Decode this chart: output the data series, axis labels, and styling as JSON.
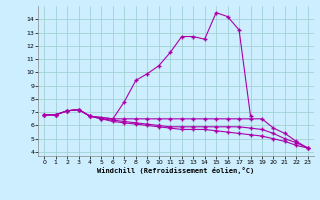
{
  "xlabel": "Windchill (Refroidissement éolien,°C)",
  "bg_color": "#cceeff",
  "grid_color": "#99cccc",
  "line_color": "#aa00aa",
  "xlim": [
    -0.5,
    23.5
  ],
  "ylim": [
    3.7,
    15.0
  ],
  "xticks": [
    0,
    1,
    2,
    3,
    4,
    5,
    6,
    7,
    8,
    9,
    10,
    11,
    12,
    13,
    14,
    15,
    16,
    17,
    18,
    19,
    20,
    21,
    22,
    23
  ],
  "yticks": [
    4,
    5,
    6,
    7,
    8,
    9,
    10,
    11,
    12,
    13,
    14
  ],
  "line1_x": [
    0,
    1,
    2,
    3,
    4,
    5,
    6,
    7,
    8,
    9,
    10,
    11,
    12,
    13,
    14,
    15,
    16,
    17,
    18
  ],
  "line1_y": [
    6.8,
    6.8,
    7.1,
    7.2,
    6.7,
    6.6,
    6.5,
    7.8,
    9.4,
    9.9,
    10.5,
    11.5,
    12.7,
    12.7,
    12.5,
    14.5,
    14.2,
    13.2,
    6.7
  ],
  "line2_x": [
    0,
    1,
    2,
    3,
    4,
    5,
    6,
    7,
    8,
    9,
    10,
    11,
    12,
    13,
    14,
    15,
    16,
    17,
    18,
    19,
    20,
    21,
    22,
    23
  ],
  "line2_y": [
    6.8,
    6.8,
    7.1,
    7.2,
    6.7,
    6.6,
    6.5,
    6.5,
    6.5,
    6.5,
    6.5,
    6.5,
    6.5,
    6.5,
    6.5,
    6.5,
    6.5,
    6.5,
    6.5,
    6.5,
    5.8,
    5.4,
    4.8,
    4.3
  ],
  "line3_x": [
    0,
    1,
    2,
    3,
    4,
    5,
    6,
    7,
    8,
    9,
    10,
    11,
    12,
    13,
    14,
    15,
    16,
    17,
    18,
    19,
    20,
    21,
    22,
    23
  ],
  "line3_y": [
    6.8,
    6.8,
    7.1,
    7.2,
    6.7,
    6.5,
    6.4,
    6.3,
    6.2,
    6.1,
    6.0,
    5.9,
    5.9,
    5.9,
    5.9,
    5.9,
    5.9,
    5.9,
    5.8,
    5.7,
    5.4,
    5.0,
    4.7,
    4.3
  ],
  "line4_x": [
    0,
    1,
    2,
    3,
    4,
    5,
    6,
    7,
    8,
    9,
    10,
    11,
    12,
    13,
    14,
    15,
    16,
    17,
    18,
    19,
    20,
    21,
    22,
    23
  ],
  "line4_y": [
    6.8,
    6.8,
    7.1,
    7.2,
    6.7,
    6.5,
    6.3,
    6.2,
    6.1,
    6.0,
    5.9,
    5.8,
    5.7,
    5.7,
    5.7,
    5.6,
    5.5,
    5.4,
    5.3,
    5.2,
    5.0,
    4.8,
    4.5,
    4.3
  ]
}
